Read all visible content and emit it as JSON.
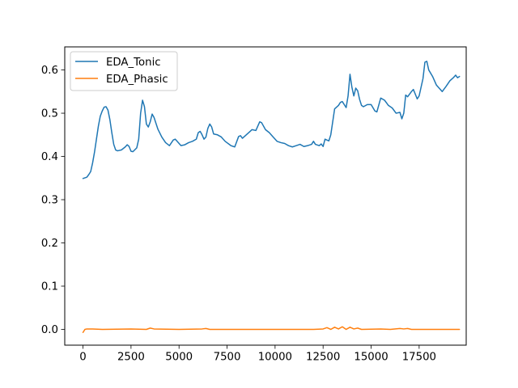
{
  "chart_data": {
    "type": "line",
    "title": "",
    "xlabel": "",
    "ylabel": "",
    "xlim": [
      -950,
      19950
    ],
    "ylim": [
      -0.0365,
      0.6534
    ],
    "grid": false,
    "legend": {
      "location": "upper-left"
    },
    "x_ticks": [
      {
        "value": 0,
        "label": "0"
      },
      {
        "value": 2500,
        "label": "2500"
      },
      {
        "value": 5000,
        "label": "5000"
      },
      {
        "value": 7500,
        "label": "7500"
      },
      {
        "value": 10000,
        "label": "10000"
      },
      {
        "value": 12500,
        "label": "12500"
      },
      {
        "value": 15000,
        "label": "15000"
      },
      {
        "value": 17500,
        "label": "17500"
      }
    ],
    "y_ticks": [
      {
        "value": 0.0,
        "label": "0.0"
      },
      {
        "value": 0.1,
        "label": "0.1"
      },
      {
        "value": 0.2,
        "label": "0.2"
      },
      {
        "value": 0.3,
        "label": "0.3"
      },
      {
        "value": 0.4,
        "label": "0.4"
      },
      {
        "value": 0.5,
        "label": "0.5"
      },
      {
        "value": 0.6,
        "label": "0.6"
      }
    ],
    "series": [
      {
        "name": "EDA_Tonic",
        "color": "#1f77b4",
        "points": [
          [
            0,
            0.349
          ],
          [
            200,
            0.352
          ],
          [
            300,
            0.358
          ],
          [
            400,
            0.365
          ],
          [
            500,
            0.385
          ],
          [
            600,
            0.41
          ],
          [
            700,
            0.44
          ],
          [
            800,
            0.47
          ],
          [
            900,
            0.493
          ],
          [
            1000,
            0.505
          ],
          [
            1100,
            0.514
          ],
          [
            1200,
            0.515
          ],
          [
            1300,
            0.507
          ],
          [
            1400,
            0.485
          ],
          [
            1500,
            0.455
          ],
          [
            1600,
            0.428
          ],
          [
            1700,
            0.415
          ],
          [
            1800,
            0.413
          ],
          [
            2000,
            0.415
          ],
          [
            2200,
            0.422
          ],
          [
            2300,
            0.427
          ],
          [
            2400,
            0.423
          ],
          [
            2500,
            0.412
          ],
          [
            2600,
            0.411
          ],
          [
            2800,
            0.42
          ],
          [
            2900,
            0.44
          ],
          [
            3000,
            0.5
          ],
          [
            3100,
            0.53
          ],
          [
            3200,
            0.515
          ],
          [
            3300,
            0.475
          ],
          [
            3400,
            0.468
          ],
          [
            3500,
            0.48
          ],
          [
            3600,
            0.498
          ],
          [
            3700,
            0.49
          ],
          [
            3900,
            0.463
          ],
          [
            4100,
            0.445
          ],
          [
            4300,
            0.432
          ],
          [
            4500,
            0.425
          ],
          [
            4700,
            0.438
          ],
          [
            4800,
            0.44
          ],
          [
            4900,
            0.435
          ],
          [
            5100,
            0.425
          ],
          [
            5300,
            0.427
          ],
          [
            5500,
            0.432
          ],
          [
            5700,
            0.435
          ],
          [
            5900,
            0.44
          ],
          [
            6000,
            0.455
          ],
          [
            6100,
            0.458
          ],
          [
            6200,
            0.45
          ],
          [
            6300,
            0.44
          ],
          [
            6400,
            0.445
          ],
          [
            6500,
            0.465
          ],
          [
            6600,
            0.475
          ],
          [
            6700,
            0.468
          ],
          [
            6800,
            0.452
          ],
          [
            7000,
            0.45
          ],
          [
            7200,
            0.445
          ],
          [
            7400,
            0.435
          ],
          [
            7700,
            0.425
          ],
          [
            7900,
            0.422
          ],
          [
            8100,
            0.446
          ],
          [
            8200,
            0.448
          ],
          [
            8300,
            0.442
          ],
          [
            8500,
            0.45
          ],
          [
            8700,
            0.458
          ],
          [
            8800,
            0.462
          ],
          [
            9000,
            0.46
          ],
          [
            9100,
            0.47
          ],
          [
            9200,
            0.48
          ],
          [
            9300,
            0.478
          ],
          [
            9500,
            0.462
          ],
          [
            9700,
            0.455
          ],
          [
            9900,
            0.445
          ],
          [
            10100,
            0.435
          ],
          [
            10300,
            0.432
          ],
          [
            10500,
            0.43
          ],
          [
            10700,
            0.425
          ],
          [
            10900,
            0.422
          ],
          [
            11100,
            0.425
          ],
          [
            11300,
            0.428
          ],
          [
            11500,
            0.423
          ],
          [
            11700,
            0.425
          ],
          [
            11900,
            0.428
          ],
          [
            12000,
            0.435
          ],
          [
            12100,
            0.428
          ],
          [
            12300,
            0.425
          ],
          [
            12400,
            0.429
          ],
          [
            12500,
            0.423
          ],
          [
            12600,
            0.44
          ],
          [
            12800,
            0.436
          ],
          [
            12900,
            0.45
          ],
          [
            13000,
            0.48
          ],
          [
            13100,
            0.51
          ],
          [
            13300,
            0.518
          ],
          [
            13400,
            0.525
          ],
          [
            13500,
            0.527
          ],
          [
            13600,
            0.52
          ],
          [
            13700,
            0.513
          ],
          [
            13800,
            0.54
          ],
          [
            13900,
            0.59
          ],
          [
            14000,
            0.56
          ],
          [
            14100,
            0.54
          ],
          [
            14200,
            0.558
          ],
          [
            14300,
            0.552
          ],
          [
            14400,
            0.532
          ],
          [
            14500,
            0.518
          ],
          [
            14600,
            0.515
          ],
          [
            14800,
            0.52
          ],
          [
            15000,
            0.52
          ],
          [
            15200,
            0.505
          ],
          [
            15300,
            0.503
          ],
          [
            15500,
            0.535
          ],
          [
            15700,
            0.53
          ],
          [
            15900,
            0.518
          ],
          [
            16100,
            0.512
          ],
          [
            16300,
            0.5
          ],
          [
            16500,
            0.502
          ],
          [
            16600,
            0.487
          ],
          [
            16700,
            0.5
          ],
          [
            16800,
            0.542
          ],
          [
            16900,
            0.538
          ],
          [
            17100,
            0.55
          ],
          [
            17200,
            0.555
          ],
          [
            17400,
            0.533
          ],
          [
            17500,
            0.54
          ],
          [
            17700,
            0.58
          ],
          [
            17800,
            0.618
          ],
          [
            17900,
            0.62
          ],
          [
            18000,
            0.6
          ],
          [
            18200,
            0.585
          ],
          [
            18400,
            0.565
          ],
          [
            18700,
            0.55
          ],
          [
            18900,
            0.562
          ],
          [
            19100,
            0.575
          ],
          [
            19300,
            0.583
          ],
          [
            19400,
            0.588
          ],
          [
            19500,
            0.582
          ],
          [
            19600,
            0.585
          ]
        ]
      },
      {
        "name": "EDA_Phasic",
        "color": "#ff7f0e",
        "points": [
          [
            0,
            -0.007
          ],
          [
            100,
            0.0
          ],
          [
            200,
            0.001
          ],
          [
            500,
            0.001
          ],
          [
            1000,
            0.0
          ],
          [
            2500,
            0.001
          ],
          [
            3300,
            0.0
          ],
          [
            3500,
            0.003
          ],
          [
            3700,
            0.001
          ],
          [
            5000,
            0.0
          ],
          [
            6200,
            0.001
          ],
          [
            6400,
            0.002
          ],
          [
            6600,
            0.0
          ],
          [
            8000,
            0.0
          ],
          [
            10000,
            0.0
          ],
          [
            12000,
            0.0
          ],
          [
            12500,
            0.001
          ],
          [
            12700,
            0.004
          ],
          [
            12900,
            0.0
          ],
          [
            13100,
            0.005
          ],
          [
            13300,
            0.001
          ],
          [
            13500,
            0.006
          ],
          [
            13700,
            0.0
          ],
          [
            13900,
            0.005
          ],
          [
            14100,
            0.001
          ],
          [
            14300,
            0.003
          ],
          [
            14500,
            0.0
          ],
          [
            15500,
            0.001
          ],
          [
            16000,
            0.0
          ],
          [
            16500,
            0.002
          ],
          [
            16700,
            0.001
          ],
          [
            16900,
            0.002
          ],
          [
            17100,
            0.0
          ],
          [
            18000,
            0.0
          ],
          [
            19600,
            0.0
          ]
        ]
      }
    ]
  }
}
